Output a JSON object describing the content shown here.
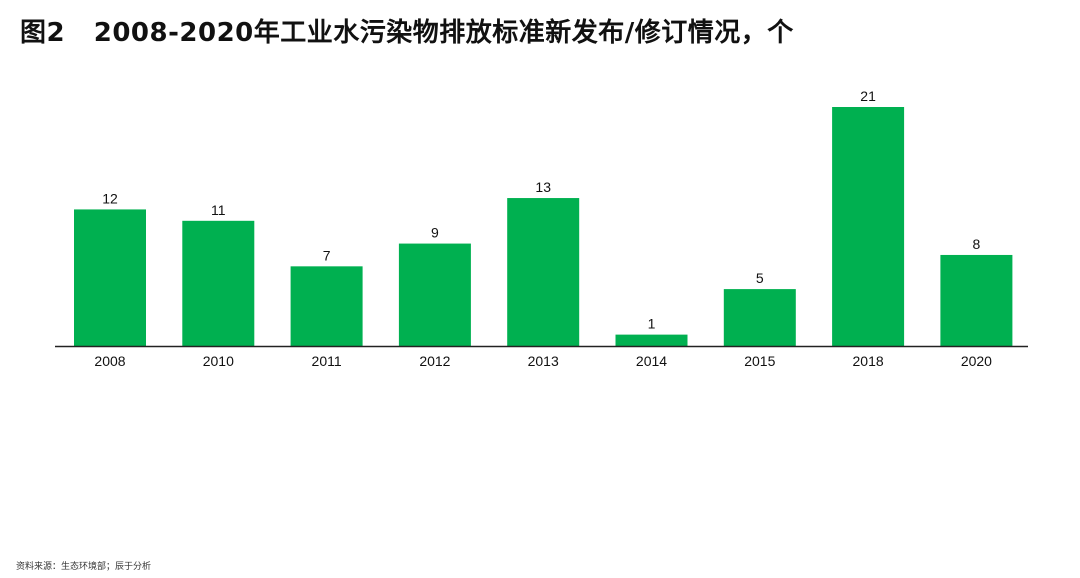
{
  "title": "图2   2008-2020年工业水污染物排放标准新发布/修订情况，个",
  "source": "资料来源：生态环境部；辰于分析",
  "chart_data": {
    "type": "bar",
    "categories": [
      "2008",
      "2010",
      "2011",
      "2012",
      "2013",
      "2014",
      "2015",
      "2018",
      "2020"
    ],
    "values": [
      12,
      11,
      7,
      9,
      13,
      1,
      5,
      21,
      8
    ],
    "title": "图2   2008-2020年工业水污染物排放标准新发布/修订情况，个",
    "xlabel": "",
    "ylabel": "",
    "ylim": [
      0,
      21
    ],
    "grid": false,
    "data_labels": true,
    "bar_color": "#00b050"
  }
}
